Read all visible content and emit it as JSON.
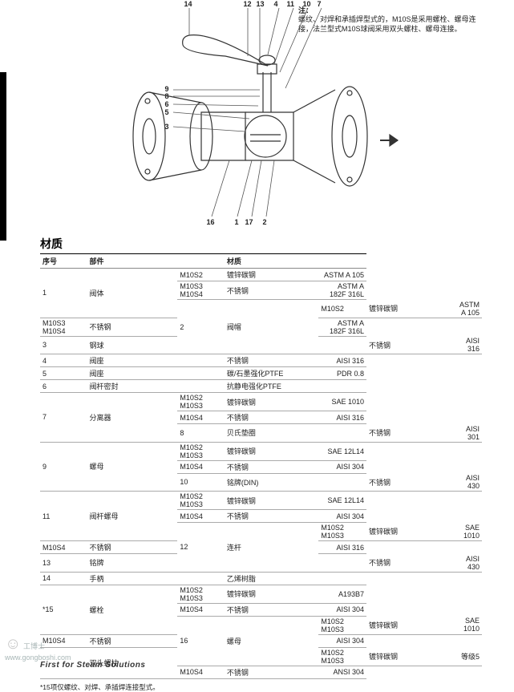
{
  "note_label": "注：",
  "note_text": "螺纹、对焊和承插焊型式的，M10S是采用螺栓、螺母连接，法兰型式M10S球阀采用双头螺柱、螺母连接。",
  "top_nums": [
    "14",
    "12",
    "13",
    "4",
    "11",
    "10",
    "7"
  ],
  "left_nums": [
    "9",
    "8",
    "6",
    "5",
    "3"
  ],
  "bottom_nums": [
    "16",
    "1",
    "17",
    "2"
  ],
  "section_title": "材质",
  "headers": {
    "seq": "序号",
    "part": "部件",
    "mat": "材质"
  },
  "rows": [
    {
      "seq": "1",
      "part": "阀体",
      "sub": [
        {
          "model": "M10S2",
          "mat": "镀锌碳钢",
          "spec": "ASTM A 105"
        },
        {
          "model": "M10S3\nM10S4",
          "mat": "不锈钢",
          "spec": "ASTM A 182F 316L"
        }
      ]
    },
    {
      "seq": "2",
      "part": "阀帽",
      "sub": [
        {
          "model": "M10S2",
          "mat": "镀锌碳钢",
          "spec": "ASTM A 105"
        },
        {
          "model": "M10S3\nM10S4",
          "mat": "不锈钢",
          "spec": "ASTM A 182F 316L"
        }
      ]
    },
    {
      "seq": "3",
      "part": "钢球",
      "sub": [
        {
          "model": "",
          "mat": "不锈钢",
          "spec": "AISI 316"
        }
      ]
    },
    {
      "seq": "4",
      "part": "阀座",
      "sub": [
        {
          "model": "",
          "mat": "不锈钢",
          "spec": "AISI 316"
        }
      ]
    },
    {
      "seq": "5",
      "part": "阀座",
      "sub": [
        {
          "model": "",
          "mat": "碳/石墨强化PTFE",
          "spec": "PDR 0.8"
        }
      ]
    },
    {
      "seq": "6",
      "part": "阀杆密封",
      "sub": [
        {
          "model": "",
          "mat": "抗静电强化PTFE",
          "spec": ""
        }
      ]
    },
    {
      "seq": "7",
      "part": "分离器",
      "sub": [
        {
          "model": "M10S2\nM10S3",
          "mat": "镀锌碳钢",
          "spec": "SAE 1010"
        },
        {
          "model": "M10S4",
          "mat": "不锈钢",
          "spec": "AISI 316"
        }
      ]
    },
    {
      "seq": "8",
      "part": "贝氏垫圈",
      "sub": [
        {
          "model": "",
          "mat": "不锈钢",
          "spec": "AISI 301"
        }
      ]
    },
    {
      "seq": "9",
      "part": "螺母",
      "sub": [
        {
          "model": "M10S2\nM10S3",
          "mat": "镀锌碳钢",
          "spec": "SAE 12L14"
        },
        {
          "model": "M10S4",
          "mat": "不锈钢",
          "spec": "AISI 304"
        }
      ]
    },
    {
      "seq": "10",
      "part": "铭牌(DIN)",
      "sub": [
        {
          "model": "",
          "mat": "不锈钢",
          "spec": "AISI 430"
        }
      ]
    },
    {
      "seq": "11",
      "part": "阀杆螺母",
      "sub": [
        {
          "model": "M10S2\nM10S3",
          "mat": "镀锌碳钢",
          "spec": "SAE 12L14"
        },
        {
          "model": "M10S4",
          "mat": "不锈钢",
          "spec": "AISI 304"
        }
      ]
    },
    {
      "seq": "12",
      "part": "连杆",
      "sub": [
        {
          "model": "M10S2\nM10S3",
          "mat": "镀锌碳钢",
          "spec": "SAE 1010"
        },
        {
          "model": "M10S4",
          "mat": "不锈钢",
          "spec": "AISI 316"
        }
      ]
    },
    {
      "seq": "13",
      "part": "铭牌",
      "sub": [
        {
          "model": "",
          "mat": "不锈钢",
          "spec": "AISI 430"
        }
      ]
    },
    {
      "seq": "14",
      "part": "手柄",
      "sub": [
        {
          "model": "",
          "mat": "乙烯树脂",
          "spec": ""
        }
      ]
    },
    {
      "seq": "*15",
      "part": "螺栓",
      "sub": [
        {
          "model": "M10S2\nM10S3",
          "mat": "镀锌碳钢",
          "spec": "A193B7"
        },
        {
          "model": "M10S4",
          "mat": "不锈钢",
          "spec": "AISI 304"
        }
      ]
    },
    {
      "seq": "16",
      "part": "螺母",
      "sub": [
        {
          "model": "M10S2\nM10S3",
          "mat": "镀锌碳钢",
          "spec": "SAE 1010"
        },
        {
          "model": "M10S4",
          "mat": "不锈钢",
          "spec": "AISI 304"
        }
      ]
    },
    {
      "seq": "",
      "part": "双头螺柱",
      "sub": [
        {
          "model": "M10S2\nM10S3",
          "mat": "镀锌碳钢",
          "spec": "等级5"
        },
        {
          "model": "M10S4",
          "mat": "不锈钢",
          "spec": "ANSI 304"
        }
      ]
    }
  ],
  "footnote": "*15项仅螺纹、对焊、承插焊连接型式。",
  "footer": "First for Steam Solutions",
  "watermark_brand": "工博士",
  "watermark_domain": "www.gongboshi.com",
  "colors": {
    "line": "#333",
    "border": "#888"
  }
}
